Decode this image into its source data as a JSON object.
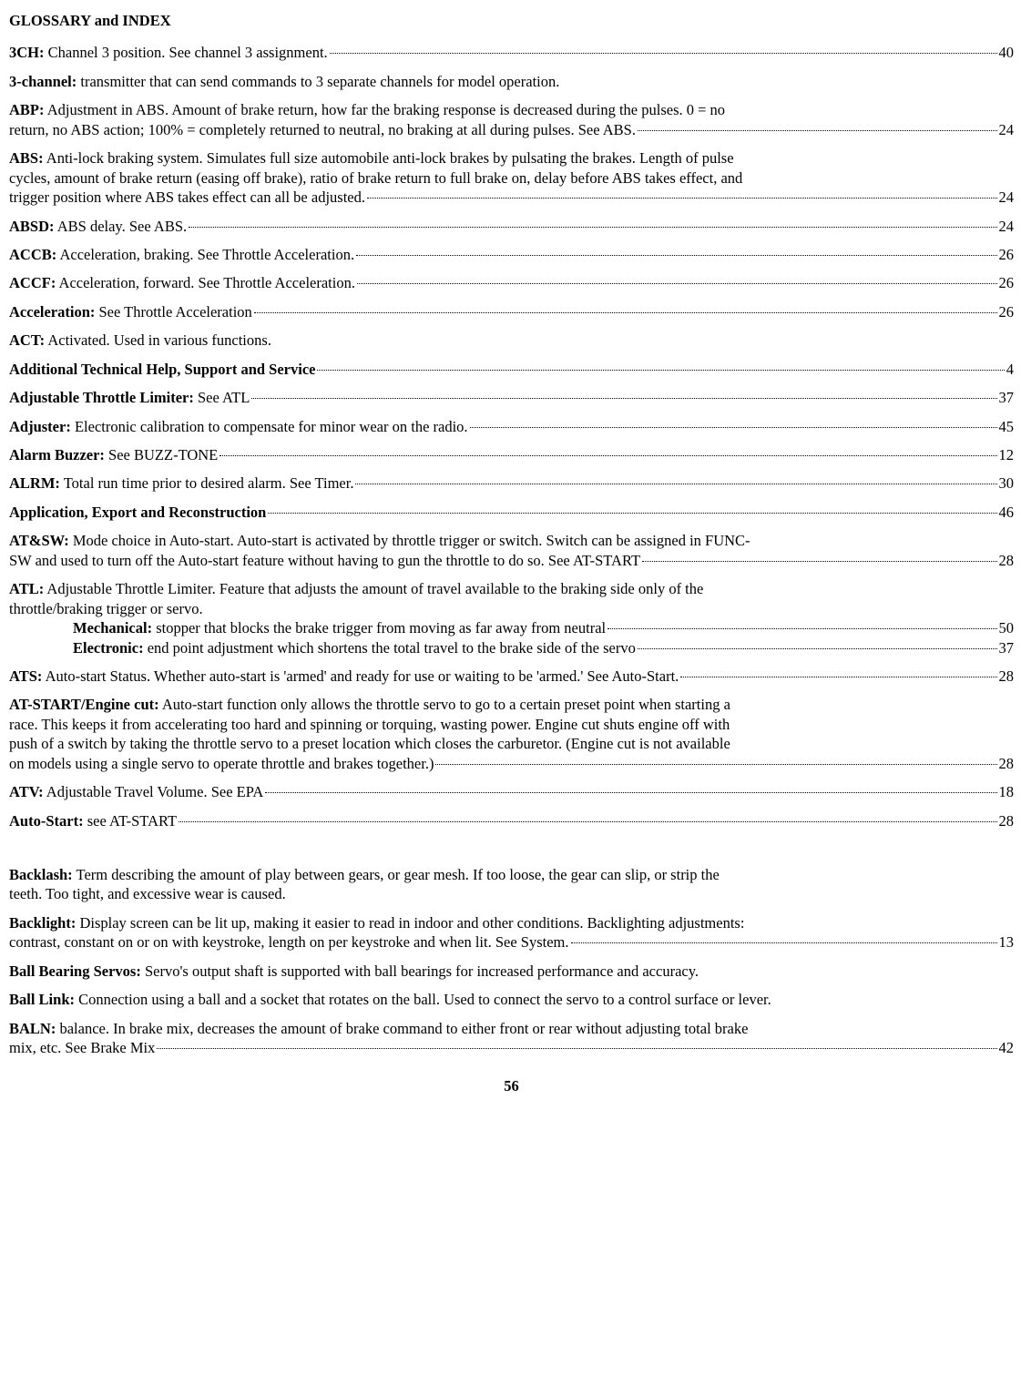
{
  "title": "GLOSSARY and INDEX",
  "footer_page": "56",
  "entries": {
    "e1": {
      "term": "3CH:",
      "text": " Channel 3 position. See channel 3 assignment.",
      "page": "40"
    },
    "e2": {
      "term": "3-channel:",
      "text": " transmitter that can send commands to 3 separate channels for model operation."
    },
    "e3": {
      "term": "ABP:",
      "text_l1": " Adjustment in ABS. Amount of brake return, how far the braking response is decreased during the pulses. 0 = no",
      "text_l2": "return, no ABS action; 100% = completely returned to neutral, no braking at all during pulses. See ABS.",
      "page": "24"
    },
    "e4": {
      "term": "ABS:",
      "text_l1": " Anti-lock braking system. Simulates full size automobile anti-lock brakes by pulsating the brakes. Length of pulse",
      "text_l2": "cycles, amount of brake return (easing off brake), ratio of brake return to full brake on, delay before ABS takes effect, and",
      "text_l3": "trigger position where ABS takes effect can all be adjusted.",
      "page": "24"
    },
    "e5": {
      "term": "ABSD:",
      "text": " ABS delay. See ABS. ",
      "page": "24"
    },
    "e6": {
      "term": "ACCB:",
      "text": " Acceleration, braking. See Throttle Acceleration.",
      "page": "26"
    },
    "e7": {
      "term": "ACCF:",
      "text": " Acceleration, forward. See Throttle Acceleration. ",
      "page": "26"
    },
    "e8": {
      "term": "Acceleration:",
      "text": " See Throttle Acceleration ",
      "page": "26"
    },
    "e9": {
      "term": "ACT:",
      "text": " Activated. Used in various functions."
    },
    "e10": {
      "term": "Additional Technical Help, Support and Service",
      "text": "",
      "page": "4"
    },
    "e11": {
      "term": "Adjustable Throttle Limiter:",
      "text": " See ATL",
      "page": "37"
    },
    "e12": {
      "term": "Adjuster:",
      "text": " Electronic calibration to compensate for minor wear on the radio. ",
      "page": "45"
    },
    "e13": {
      "term": "Alarm Buzzer:",
      "text": " See BUZZ-TONE",
      "page": "12"
    },
    "e14": {
      "term": "ALRM:",
      "text": " Total run time prior to desired alarm. See Timer.",
      "page": "30"
    },
    "e15": {
      "term": "Application, Export and Reconstruction",
      "text": "",
      "page": "46"
    },
    "e16": {
      "term": "AT&SW:",
      "text_l1": " Mode choice in Auto-start. Auto-start is activated by throttle trigger or switch. Switch can be assigned in FUNC-",
      "text_l2": "SW and used to turn off the Auto-start feature without having to gun the throttle to do so. See AT-START",
      "page": "28"
    },
    "e17": {
      "term": "ATL:",
      "text_l1": " Adjustable Throttle Limiter. Feature that adjusts the amount of travel available to the braking side only of the",
      "text_l2": "throttle/braking trigger or servo.",
      "sub1_term": "Mechanical:",
      "sub1_text": " stopper that blocks the brake trigger from moving as far away from neutral ",
      "sub1_page": "50",
      "sub2_term": "Electronic:",
      "sub2_text": " end point adjustment which shortens the total travel to the brake side of the servo ",
      "sub2_page": "37"
    },
    "e18": {
      "term": "ATS:",
      "text": " Auto-start Status. Whether auto-start is 'armed' and ready for use or waiting to be 'armed.' See Auto-Start.",
      "page": "28"
    },
    "e19": {
      "term": "AT-START/Engine cut:",
      "text_l1": " Auto-start function only allows the throttle servo to go to a certain preset point when starting a",
      "text_l2": "race. This keeps it from accelerating too hard and spinning or torquing, wasting power. Engine cut shuts engine off with",
      "text_l3": "push of a switch by taking the throttle servo to a preset location which closes the carburetor. (Engine cut is not available",
      "text_l4": "on models using a single servo to operate throttle and brakes together.) ",
      "page": "28"
    },
    "e20": {
      "term": "ATV:",
      "text": " Adjustable Travel Volume. See EPA",
      "page": "18"
    },
    "e21": {
      "term": "Auto-Start:",
      "text": " see AT-START ",
      "page": "28"
    },
    "e22": {
      "term": "Backlash:",
      "text_l1": " Term describing the amount of play between gears, or gear mesh. If too loose, the gear can slip, or strip the",
      "text_l2": "teeth. Too tight, and excessive wear is caused."
    },
    "e23": {
      "term": "Backlight:",
      "text_l1": " Display screen can be lit up, making it easier to read in indoor and other conditions.  Backlighting adjustments:",
      "text_l2": "contrast, constant on or on with keystroke, length on per keystroke and when lit. See System. ",
      "page": "13"
    },
    "e24": {
      "term": "Ball Bearing Servos:",
      "text": " Servo's output shaft is supported with ball bearings for increased performance and accuracy."
    },
    "e25": {
      "term": "Ball Link:",
      "text": " Connection using a ball and a socket that rotates on the ball. Used to connect the servo to a control surface or lever."
    },
    "e26": {
      "term": "BALN:",
      "text_l1": " balance. In brake mix, decreases the amount of brake command to either front or rear without adjusting total brake",
      "text_l2": "mix, etc. See Brake Mix ",
      "page": "42"
    }
  }
}
